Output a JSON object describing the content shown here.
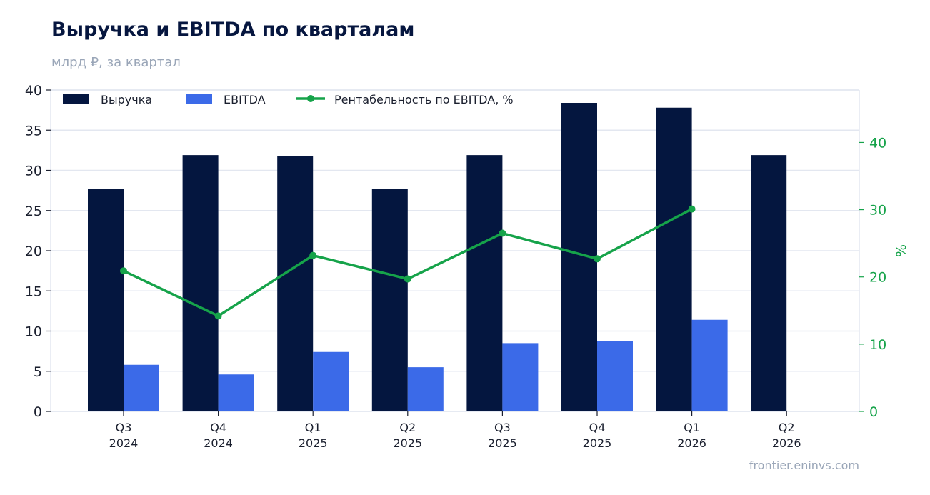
{
  "title": "Выручка и EBITDA по кварталам",
  "subtitle": "млрд ₽, за квартал",
  "source": "frontier.eninvs.com",
  "colors": {
    "revenue": "#04163f",
    "ebitda": "#3b6ae8",
    "margin": "#16a34a",
    "grid": "#e3e7f0"
  },
  "chart_data": {
    "type": "bar",
    "categories": [
      [
        "Q3",
        "2024"
      ],
      [
        "Q4",
        "2024"
      ],
      [
        "Q1",
        "2025"
      ],
      [
        "Q2",
        "2025"
      ],
      [
        "Q3",
        "2025"
      ],
      [
        "Q4",
        "2025"
      ],
      [
        "Q1",
        "2026"
      ],
      [
        "Q2",
        "2026"
      ]
    ],
    "series": [
      {
        "name": "Выручка",
        "kind": "bar",
        "axis": "left",
        "values": [
          27.7,
          31.9,
          31.8,
          27.7,
          31.9,
          38.4,
          37.8,
          31.9
        ]
      },
      {
        "name": "EBITDA",
        "kind": "bar",
        "axis": "left",
        "values": [
          5.8,
          4.6,
          7.4,
          5.5,
          8.5,
          8.8,
          11.4,
          null
        ]
      },
      {
        "name": "Рентабельность по EBITDA, %",
        "kind": "line",
        "axis": "right",
        "values": [
          20.9,
          14.2,
          23.2,
          19.7,
          26.5,
          22.7,
          30.1,
          null
        ]
      }
    ],
    "ylim": [
      0,
      40
    ],
    "yticks": [
      0,
      5,
      10,
      15,
      20,
      25,
      30,
      35,
      40
    ],
    "y2lim": [
      0,
      47.8
    ],
    "y2ticks": [
      0,
      10,
      20,
      30,
      40
    ],
    "y2label": "%",
    "grid": true,
    "legend": "top-left"
  }
}
